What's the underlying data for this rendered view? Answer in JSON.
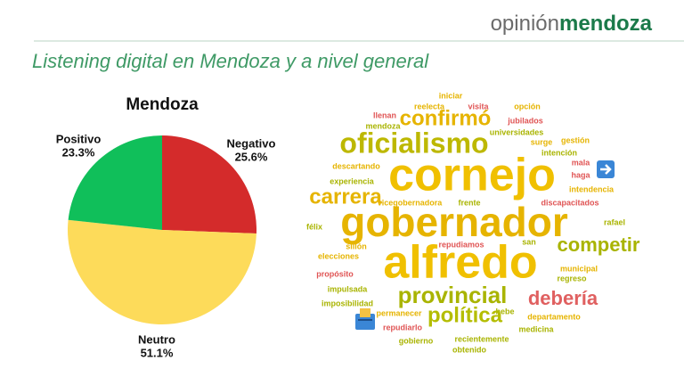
{
  "header": {
    "brand_light": "opinión",
    "brand_bold": "mendoza"
  },
  "title": "Listening digital en Mendoza y a nivel general",
  "chart_data": {
    "type": "pie",
    "title": "Mendoza",
    "categories": [
      "Negativo",
      "Neutro",
      "Positivo"
    ],
    "values": [
      25.6,
      51.1,
      23.3
    ],
    "value_labels": [
      "25.6%",
      "51.1%",
      "23.3%"
    ],
    "colors": [
      "#d42b2b",
      "#fddb5a",
      "#10bf5a"
    ]
  },
  "word_cloud": {
    "words": [
      {
        "text": "iniciar",
        "color": "#e6b400"
      },
      {
        "text": "visita",
        "color": "#e05555"
      },
      {
        "text": "opción",
        "color": "#e6b400"
      },
      {
        "text": "reelecta",
        "color": "#e6b400"
      },
      {
        "text": "llenan",
        "color": "#e05555"
      },
      {
        "text": "confirmó",
        "color": "#e6b400"
      },
      {
        "text": "jubilados",
        "color": "#e05555"
      },
      {
        "text": "mendoza",
        "color": "#a9b400"
      },
      {
        "text": "universidades",
        "color": "#a9b400"
      },
      {
        "text": "oficialismo",
        "color": "#bdb800"
      },
      {
        "text": "surge",
        "color": "#e6b400"
      },
      {
        "text": "gestión",
        "color": "#e6b400"
      },
      {
        "text": "intención",
        "color": "#a9b400"
      },
      {
        "text": "mala",
        "color": "#e05555"
      },
      {
        "text": "descartando",
        "color": "#e6b400"
      },
      {
        "text": "cornejo",
        "color": "#f0c000"
      },
      {
        "text": "haga",
        "color": "#e05555"
      },
      {
        "text": "experiencia",
        "color": "#a9b400"
      },
      {
        "text": "intendencia",
        "color": "#e6b400"
      },
      {
        "text": "carrera",
        "color": "#e6b400"
      },
      {
        "text": "vicegobernadora",
        "color": "#e6b400"
      },
      {
        "text": "frente",
        "color": "#a9b400"
      },
      {
        "text": "discapacitados",
        "color": "#e05555"
      },
      {
        "text": "gobernador",
        "color": "#e6b400"
      },
      {
        "text": "félix",
        "color": "#a9b400"
      },
      {
        "text": "rafael",
        "color": "#a9b400"
      },
      {
        "text": "competir",
        "color": "#a9b400"
      },
      {
        "text": "sillón",
        "color": "#e6b400"
      },
      {
        "text": "repudiamos",
        "color": "#e05555"
      },
      {
        "text": "san",
        "color": "#a9b400"
      },
      {
        "text": "elecciones",
        "color": "#e6b400"
      },
      {
        "text": "alfredo",
        "color": "#f0c000"
      },
      {
        "text": "propósito",
        "color": "#e05555"
      },
      {
        "text": "municipal",
        "color": "#e6b400"
      },
      {
        "text": "regreso",
        "color": "#a9b400"
      },
      {
        "text": "impulsada",
        "color": "#a9b400"
      },
      {
        "text": "provincial",
        "color": "#a9b400"
      },
      {
        "text": "debería",
        "color": "#e06060"
      },
      {
        "text": "imposibilidad",
        "color": "#a9b400"
      },
      {
        "text": "hebe",
        "color": "#a9b400"
      },
      {
        "text": "permanecer",
        "color": "#e6b400"
      },
      {
        "text": "política",
        "color": "#b4bd00"
      },
      {
        "text": "departamento",
        "color": "#e6b400"
      },
      {
        "text": "repudiarlo",
        "color": "#e05555"
      },
      {
        "text": "medicina",
        "color": "#a9b400"
      },
      {
        "text": "gobierno",
        "color": "#a9b400"
      },
      {
        "text": "recientemente",
        "color": "#a9b400"
      },
      {
        "text": "obtenido",
        "color": "#a9b400"
      }
    ]
  }
}
